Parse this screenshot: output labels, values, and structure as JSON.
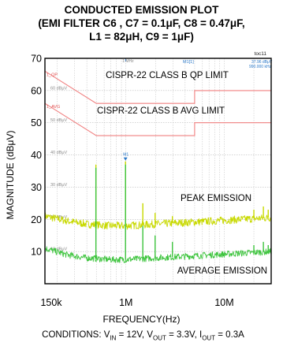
{
  "chart_data": {
    "type": "line",
    "title_lines": [
      "CONDUCTED EMISSION PLOT",
      "(EMI FILTER C6 , C7 = 0.1μF, C8 = 0.47μF,",
      "L1 = 82μH, C9 = 1μF)"
    ],
    "tag": "toc11",
    "xlabel": "FREQUENCY(Hz)",
    "ylabel": "MAGNITUDE (dBμV)",
    "x_scale": "log",
    "xlim": [
      150000,
      30000000
    ],
    "ylim": [
      0,
      70
    ],
    "x_ticks": [
      {
        "value": 150000,
        "label": "150k"
      },
      {
        "value": 1000000,
        "label": "1M"
      },
      {
        "value": 10000000,
        "label": "10M"
      }
    ],
    "y_ticks": [
      10,
      20,
      30,
      40,
      50,
      60,
      70
    ],
    "inner_ticks": [
      {
        "value": 60,
        "label": "60 dBμV"
      },
      {
        "value": 50,
        "label": "50 dBμV"
      },
      {
        "value": 40,
        "label": "40 dBμV"
      },
      {
        "value": 30,
        "label": "30 dBμV"
      },
      {
        "value": 20,
        "label": "20 dBμV"
      },
      {
        "value": 10,
        "label": "10 dBμV"
      }
    ],
    "top_marker": "1 MHz",
    "marker_labels": {
      "m1": "M1[1]",
      "m1_level": "37.96 dBμV",
      "m1_freq": "990.000 kHz",
      "m1_point": "M1"
    },
    "series": [
      {
        "name": "CISPR-22 CLASS B QP LIMIT",
        "short": "1_QP",
        "color": "#f08080",
        "x": [
          150000,
          500000,
          500000,
          5000000,
          5000000,
          30000000
        ],
        "y": [
          66,
          56,
          56,
          56,
          60,
          60
        ]
      },
      {
        "name": "CISPR-22 CLASS B AVG LIMIT",
        "short": "1_AVG",
        "color": "#f08080",
        "x": [
          150000,
          500000,
          500000,
          5000000,
          5000000,
          30000000
        ],
        "y": [
          56,
          46,
          46,
          46,
          50,
          50
        ]
      },
      {
        "name": "PEAK EMISSION",
        "color": "#c8d900",
        "baseline_x": [
          150000,
          250000,
          400000,
          700000,
          1000000,
          2000000,
          4000000,
          8000000,
          15000000,
          30000000
        ],
        "baseline_y": [
          21,
          19.5,
          18.5,
          18,
          18,
          18.5,
          19,
          19.5,
          20,
          20.5
        ],
        "spikes": [
          {
            "x": 495000,
            "y": 37
          },
          {
            "x": 990000,
            "y": 38
          },
          {
            "x": 1485000,
            "y": 25
          },
          {
            "x": 1980000,
            "y": 22
          },
          {
            "x": 2970000,
            "y": 21
          },
          {
            "x": 20000000,
            "y": 23
          },
          {
            "x": 25000000,
            "y": 24
          },
          {
            "x": 28000000,
            "y": 23
          }
        ]
      },
      {
        "name": "AVERAGE EMISSION",
        "color": "#3ec43e",
        "baseline_x": [
          150000,
          250000,
          400000,
          700000,
          1000000,
          2000000,
          4000000,
          8000000,
          15000000,
          30000000
        ],
        "baseline_y": [
          11,
          9,
          8,
          7.5,
          7.5,
          8,
          8.5,
          9,
          9.5,
          10
        ],
        "spikes": [
          {
            "x": 495000,
            "y": 36
          },
          {
            "x": 990000,
            "y": 37
          },
          {
            "x": 1485000,
            "y": 18
          },
          {
            "x": 1980000,
            "y": 15
          },
          {
            "x": 2970000,
            "y": 13
          },
          {
            "x": 20000000,
            "y": 12
          },
          {
            "x": 25000000,
            "y": 13
          },
          {
            "x": 28000000,
            "y": 12
          }
        ]
      }
    ],
    "plot_colors": {
      "frame": "#000000",
      "grid": "#bcbcbc",
      "inner_label": "#8a8a8a",
      "marker": "#2a78c8"
    }
  },
  "conditions": {
    "prefix": "CONDITIONS: V",
    "vin_sub": "IN",
    "vin_val": " = 12V, V",
    "vout_sub": "OUT",
    "vout_val": " = 3.3V, I",
    "iout_sub": "OUT",
    "iout_val": " = 0.3A"
  }
}
